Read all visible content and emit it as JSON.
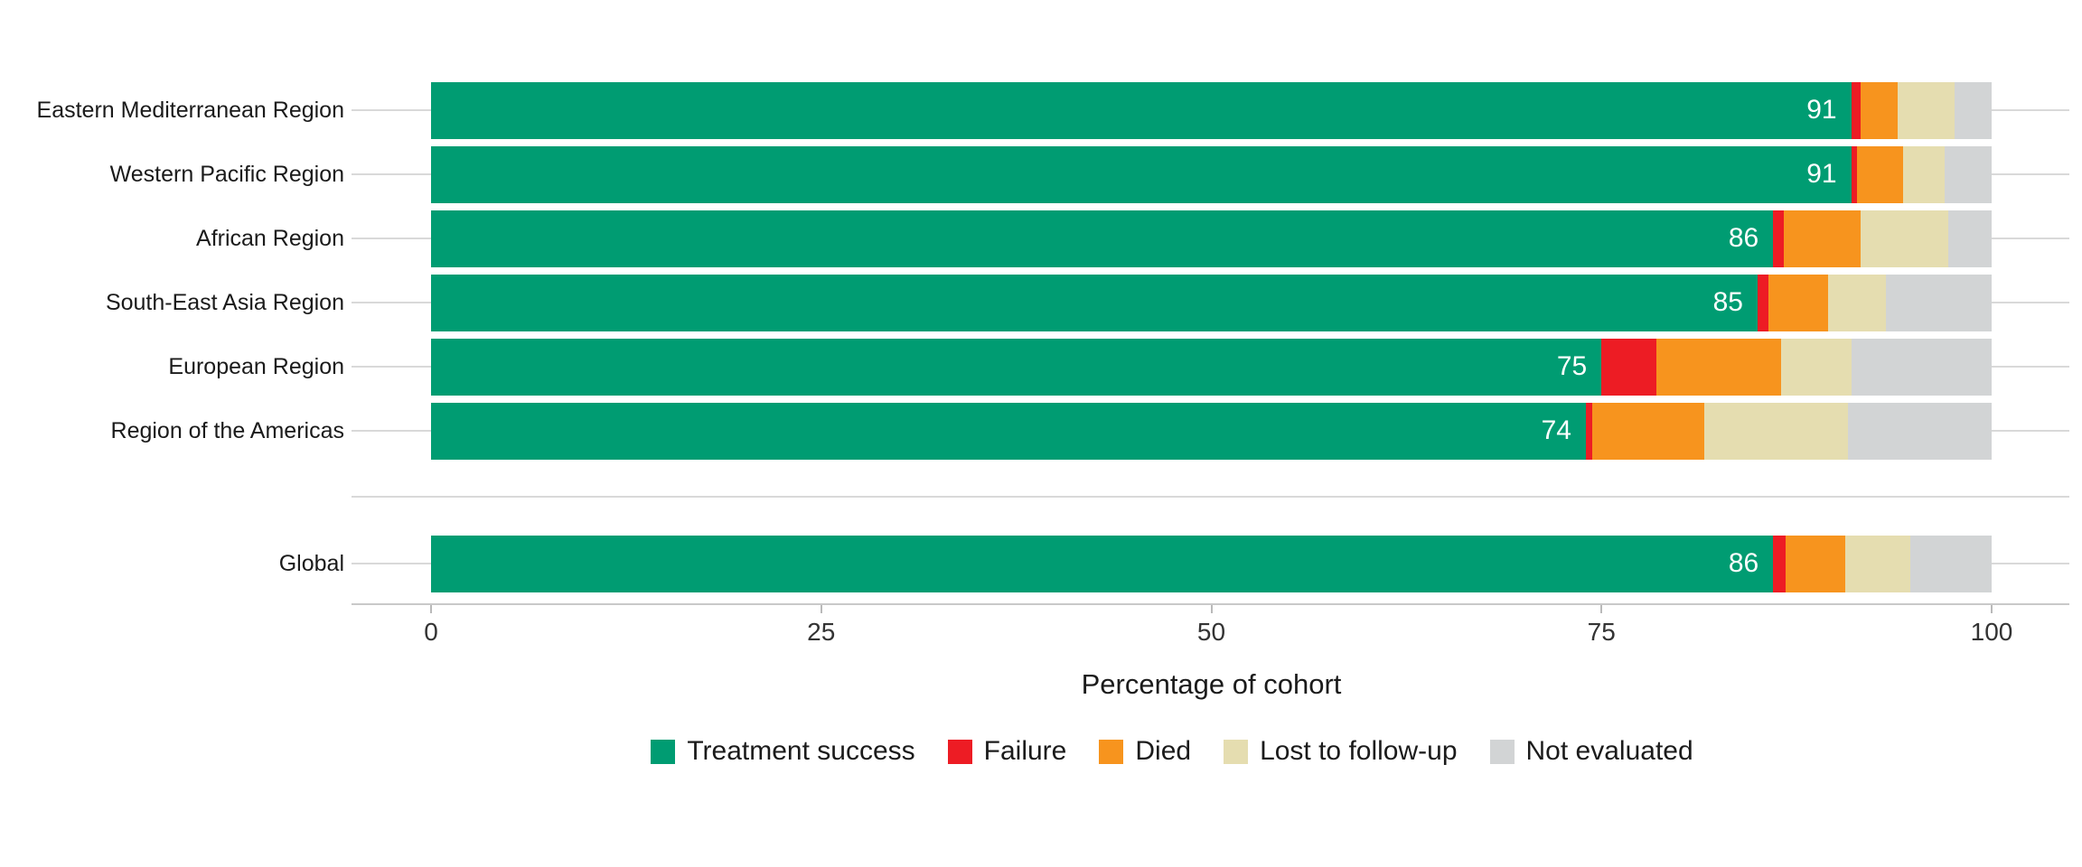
{
  "chart_data": {
    "type": "bar",
    "orientation": "horizontal",
    "stacked": true,
    "title": "",
    "xlabel": "Percentage of cohort",
    "ylabel": "",
    "xlim": [
      0,
      100
    ],
    "x_ticks": [
      0,
      25,
      50,
      75,
      100
    ],
    "x_tick_labels": [
      "0",
      "25",
      "50",
      "75",
      "100"
    ],
    "grid": "horizontal-category-lines-only",
    "legend_position": "bottom",
    "categories": [
      "Eastern Mediterranean Region",
      "Western Pacific Region",
      "African Region",
      "South-East Asia Region",
      "European Region",
      "Region of the Americas",
      "Global"
    ],
    "series": [
      {
        "name": "Treatment success",
        "color": "#009c72",
        "values": [
          91,
          91,
          86,
          85,
          75,
          74,
          86
        ]
      },
      {
        "name": "Failure",
        "color": "#ed1c24",
        "values": [
          0.6,
          0.4,
          0.7,
          0.7,
          3.5,
          0.4,
          0.8
        ]
      },
      {
        "name": "Died",
        "color": "#f7941e",
        "values": [
          2.4,
          2.9,
          4.9,
          3.8,
          8.0,
          7.2,
          3.8
        ]
      },
      {
        "name": "Lost to follow-up",
        "color": "#e5ddb0",
        "values": [
          3.6,
          2.7,
          5.6,
          3.7,
          4.5,
          9.2,
          4.2
        ]
      },
      {
        "name": "Not evaluated",
        "color": "#d2d4d5",
        "values": [
          2.4,
          3.0,
          2.8,
          6.8,
          9.0,
          9.2,
          5.2
        ]
      }
    ],
    "bar_labels": [
      "91",
      "91",
      "86",
      "85",
      "75",
      "74",
      "86"
    ],
    "bar_label_color": "#ffffff"
  },
  "colors": {
    "gridline": "#d9d9d9",
    "axis_line": "#c9c9c9",
    "tick": "#b9b9b9",
    "tick_text": "#333333",
    "label_text": "#1b1b1b"
  }
}
